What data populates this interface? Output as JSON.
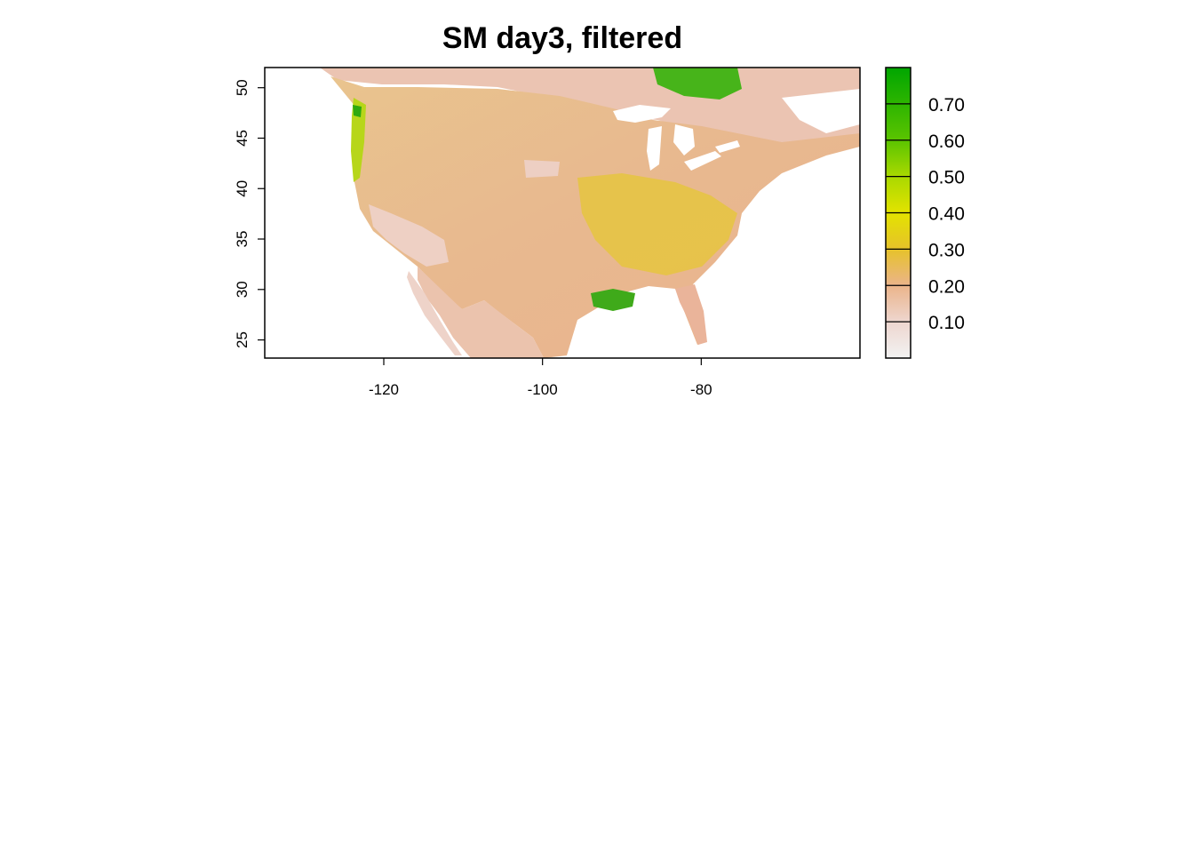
{
  "chart_data": {
    "type": "heatmap",
    "title": "SM day3, filtered",
    "xlabel": "",
    "ylabel": "",
    "xlim": [
      -135,
      -60
    ],
    "ylim": [
      23.2,
      52
    ],
    "x_ticks": [
      "-120",
      "-100",
      "-80"
    ],
    "x_tick_values": [
      -120,
      -100,
      -80
    ],
    "y_ticks": [
      "25",
      "30",
      "35",
      "40",
      "45",
      "50"
    ],
    "y_tick_values": [
      25,
      30,
      35,
      40,
      45,
      50
    ],
    "legend": {
      "placement": "right",
      "range": [
        0.0,
        0.8
      ],
      "labels": [
        "0.10",
        "0.20",
        "0.30",
        "0.40",
        "0.50",
        "0.60",
        "0.70"
      ],
      "values": [
        0.1,
        0.2,
        0.3,
        0.4,
        0.5,
        0.6,
        0.7
      ],
      "color_stops": [
        {
          "value": 0.0,
          "color": "#f2f2f2"
        },
        {
          "value": 0.1,
          "color": "#eed6cf"
        },
        {
          "value": 0.2,
          "color": "#ebb48a"
        },
        {
          "value": 0.3,
          "color": "#e6c22a"
        },
        {
          "value": 0.4,
          "color": "#e3e300"
        },
        {
          "value": 0.5,
          "color": "#a9d900"
        },
        {
          "value": 0.6,
          "color": "#5bc400"
        },
        {
          "value": 0.8,
          "color": "#00a600"
        }
      ]
    },
    "grid": false
  }
}
